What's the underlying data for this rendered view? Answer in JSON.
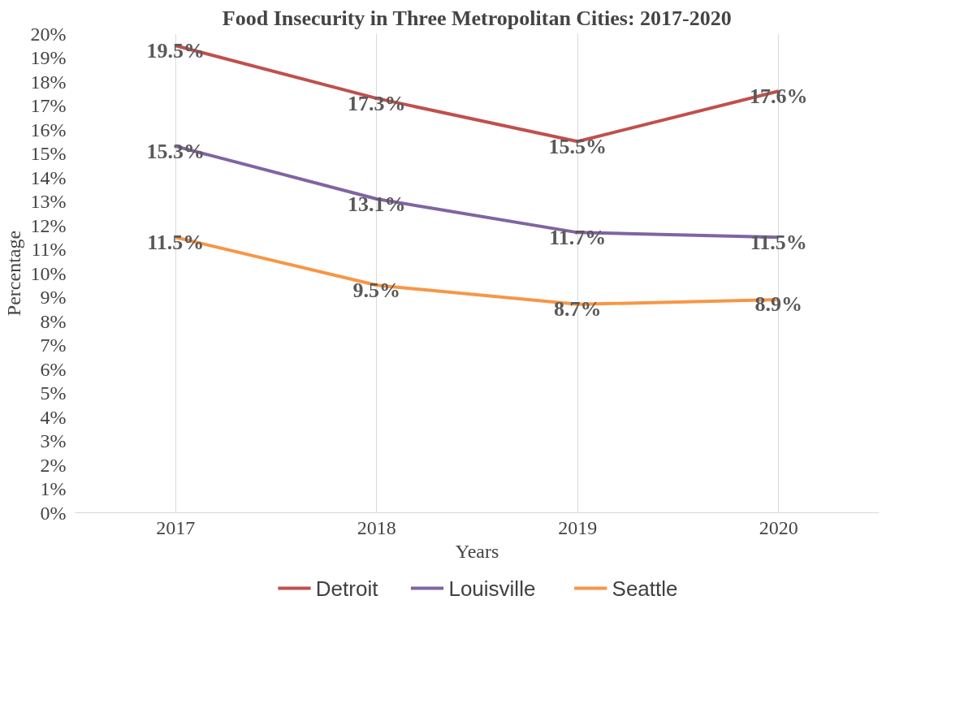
{
  "chart_data": {
    "type": "line",
    "title": "Food Insecurity in Three Metropolitan Cities: 2017-2020",
    "xlabel": "Years",
    "ylabel": "Percentage",
    "categories": [
      "2017",
      "2018",
      "2019",
      "2020"
    ],
    "series": [
      {
        "name": "Detroit",
        "color": "#c0504d",
        "values": [
          19.5,
          17.3,
          15.5,
          17.6
        ],
        "value_labels": [
          "19.5%",
          "17.3%",
          "15.5%",
          "17.6%"
        ]
      },
      {
        "name": "Louisville",
        "color": "#8064a2",
        "values": [
          15.3,
          13.1,
          11.7,
          11.5
        ],
        "value_labels": [
          "15.3%",
          "13.1%",
          "11.7%",
          "11.5%"
        ]
      },
      {
        "name": "Seattle",
        "color": "#f79646",
        "values": [
          11.5,
          9.5,
          8.7,
          8.9
        ],
        "value_labels": [
          "11.5%",
          "9.5%",
          "8.7%",
          "8.9%"
        ]
      }
    ],
    "ylim": [
      0,
      20
    ],
    "yticks": [
      {
        "value": 0,
        "label": "0%"
      },
      {
        "value": 1,
        "label": "1%"
      },
      {
        "value": 2,
        "label": "2%"
      },
      {
        "value": 3,
        "label": "3%"
      },
      {
        "value": 4,
        "label": "4%"
      },
      {
        "value": 5,
        "label": "5%"
      },
      {
        "value": 6,
        "label": "6%"
      },
      {
        "value": 7,
        "label": "7%"
      },
      {
        "value": 8,
        "label": "8%"
      },
      {
        "value": 9,
        "label": "9%"
      },
      {
        "value": 10,
        "label": "10%"
      },
      {
        "value": 11,
        "label": "11%"
      },
      {
        "value": 12,
        "label": "12%"
      },
      {
        "value": 13,
        "label": "13%"
      },
      {
        "value": 14,
        "label": "14%"
      },
      {
        "value": 15,
        "label": "15%"
      },
      {
        "value": 16,
        "label": "16%"
      },
      {
        "value": 17,
        "label": "17%"
      },
      {
        "value": 18,
        "label": "18%"
      },
      {
        "value": 19,
        "label": "19%"
      },
      {
        "value": 20,
        "label": "20%"
      }
    ],
    "grid": "x",
    "legend": "bottom",
    "marker": "none",
    "line_style": "solid"
  }
}
